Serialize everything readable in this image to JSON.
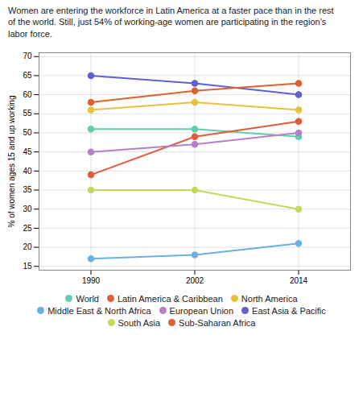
{
  "chart_data": {
    "type": "line",
    "title": "Women are entering the workforce in Latin America at a faster pace than in the rest\nof the world. Still, just 54% of working-age women are participating in the region's\nlabor force.",
    "ylabel": "% of women ages 15 and up working",
    "x": [
      1990,
      2002,
      2014
    ],
    "xlim": [
      1984,
      2020
    ],
    "xticks": [
      1990,
      2002,
      2014
    ],
    "ylim": [
      14,
      71
    ],
    "yticks": [
      15,
      20,
      25,
      30,
      35,
      40,
      45,
      50,
      55,
      60,
      65,
      70
    ],
    "grid": true,
    "legend": "bottom",
    "marker": "circle",
    "series": [
      {
        "name": "World",
        "color": "#5ecfb1",
        "values": [
          51,
          51,
          49
        ]
      },
      {
        "name": "Latin America & Caribbean",
        "color": "#e05c3a",
        "values": [
          39,
          49,
          53
        ]
      },
      {
        "name": "North America",
        "color": "#e8c13a",
        "values": [
          56,
          58,
          56
        ]
      },
      {
        "name": "Middle East & North Africa",
        "color": "#6ab0e0",
        "values": [
          17,
          18,
          21
        ]
      },
      {
        "name": "European Union",
        "color": "#b87fc4",
        "values": [
          45,
          47,
          50
        ]
      },
      {
        "name": "East Asia & Pacific",
        "color": "#6060d0",
        "values": [
          65,
          63,
          60
        ]
      },
      {
        "name": "South Asia",
        "color": "#c8d85a",
        "values": [
          35,
          35,
          30
        ]
      },
      {
        "name": "Sub-Saharan Africa",
        "color": "#e06030",
        "values": [
          58,
          61,
          63
        ]
      }
    ]
  }
}
